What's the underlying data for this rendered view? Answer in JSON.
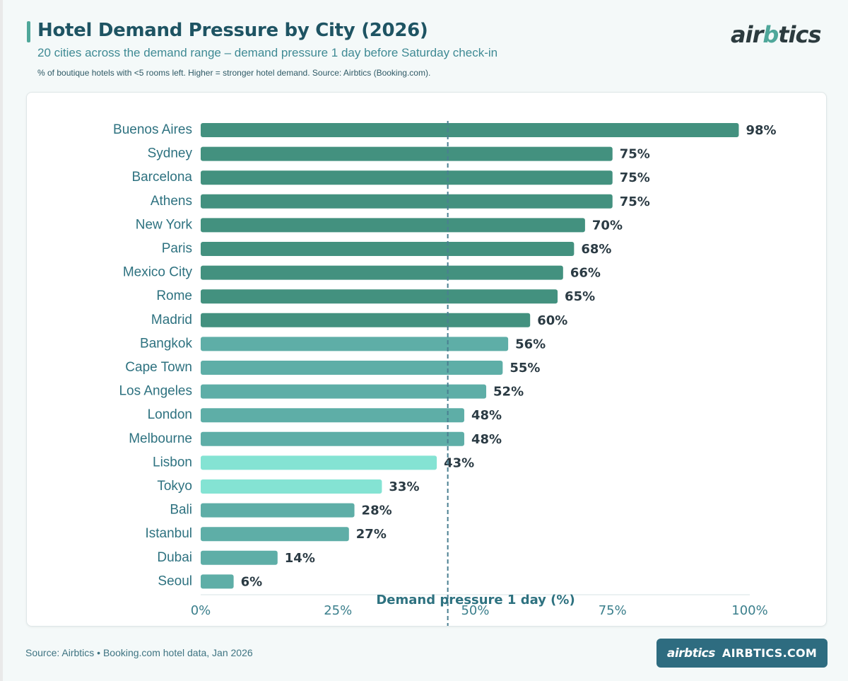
{
  "header": {
    "title": "Hotel Demand Pressure by City (2026)",
    "subtitle": "20 cities across the demand range – demand pressure 1 day before Saturday check-in",
    "note": "% of boutique hotels with <5 rooms left. Higher = stronger hotel demand. Source: Airbtics (Booking.com).",
    "logo_left": "air",
    "logo_mid": "b",
    "logo_right": "tics"
  },
  "footer": {
    "source": "Source: Airbtics • Booking.com hotel data, Jan 2026",
    "button_logo": "airbtics",
    "button_site": "AIRBTICS.COM"
  },
  "colors": {
    "dark_teal": "#43917f",
    "mid_teal": "#5eaea7",
    "light_teal": "#84e3d3",
    "reference_line": "#4a7f91",
    "accent": "#4fa79a"
  },
  "chart_data": {
    "type": "bar",
    "orientation": "horizontal",
    "title": "Hotel Demand Pressure by City (2026)",
    "xlabel": "Demand pressure 1 day (%)",
    "ylabel": "",
    "xlim": [
      0,
      100
    ],
    "x_ticks": [
      "0%",
      "25%",
      "50%",
      "75%",
      "100%"
    ],
    "x_tick_values": [
      0,
      25,
      50,
      75,
      100
    ],
    "reference_line": 45,
    "categories": [
      "Buenos Aires",
      "Sydney",
      "Barcelona",
      "Athens",
      "New York",
      "Paris",
      "Mexico City",
      "Rome",
      "Madrid",
      "Bangkok",
      "Cape Town",
      "Los Angeles",
      "London",
      "Melbourne",
      "Lisbon",
      "Tokyo",
      "Bali",
      "Istanbul",
      "Dubai",
      "Seoul"
    ],
    "values": [
      98,
      75,
      75,
      75,
      70,
      68,
      66,
      65,
      60,
      56,
      55,
      52,
      48,
      48,
      43,
      33,
      28,
      27,
      14,
      6
    ],
    "value_labels": [
      "98%",
      "75%",
      "75%",
      "75%",
      "70%",
      "68%",
      "66%",
      "65%",
      "60%",
      "56%",
      "55%",
      "52%",
      "48%",
      "48%",
      "43%",
      "33%",
      "28%",
      "27%",
      "14%",
      "6%"
    ],
    "color_groups": [
      "dark_teal",
      "dark_teal",
      "dark_teal",
      "dark_teal",
      "dark_teal",
      "dark_teal",
      "dark_teal",
      "dark_teal",
      "dark_teal",
      "mid_teal",
      "mid_teal",
      "mid_teal",
      "mid_teal",
      "mid_teal",
      "light_teal",
      "light_teal",
      "mid_teal",
      "mid_teal",
      "mid_teal",
      "mid_teal"
    ],
    "grid": false
  }
}
